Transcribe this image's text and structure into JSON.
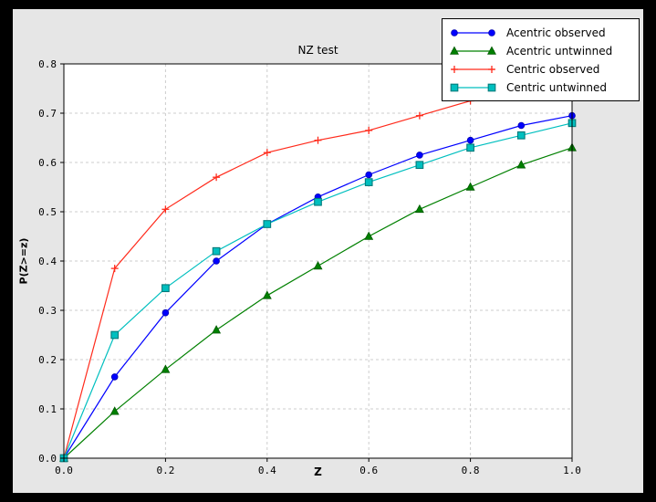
{
  "window": {
    "outer_background": "#000000",
    "figure_background": "#e6e6e6",
    "plot_background": "#ffffff",
    "grid_color": "#cccccc",
    "axis_color": "#000000",
    "text_color": "#000000"
  },
  "chart_data": {
    "type": "line",
    "title": "NZ test",
    "xlabel": "Z",
    "ylabel": "P(Z>=z)",
    "xlim": [
      0.0,
      1.0
    ],
    "ylim": [
      0.0,
      0.8
    ],
    "x_ticks": [
      0.0,
      0.2,
      0.4,
      0.6,
      0.8,
      1.0
    ],
    "x_tick_labels": [
      "0.0",
      "0.2",
      "0.4",
      "0.6",
      "0.8",
      "1.0"
    ],
    "y_ticks": [
      0.0,
      0.1,
      0.2,
      0.3,
      0.4,
      0.5,
      0.6,
      0.7,
      0.8
    ],
    "y_tick_labels": [
      "0.0",
      "0.1",
      "0.2",
      "0.3",
      "0.4",
      "0.5",
      "0.6",
      "0.7",
      "0.8"
    ],
    "grid": true,
    "legend_position": "upper-right-overlapping-plot",
    "x": [
      0.0,
      0.1,
      0.2,
      0.3,
      0.4,
      0.5,
      0.6,
      0.7,
      0.8,
      0.9,
      1.0
    ],
    "series": [
      {
        "name": "Acentric observed",
        "color": "#0000ff",
        "marker": "circle",
        "marker_edge": "#0000b0",
        "values": [
          0.0,
          0.165,
          0.295,
          0.4,
          0.475,
          0.53,
          0.575,
          0.615,
          0.645,
          0.675,
          0.695
        ]
      },
      {
        "name": "Acentric untwinned",
        "color": "#008000",
        "marker": "triangle",
        "marker_edge": "#005a00",
        "values": [
          0.0,
          0.095,
          0.18,
          0.26,
          0.33,
          0.39,
          0.45,
          0.505,
          0.55,
          0.595,
          0.63
        ]
      },
      {
        "name": "Centric observed",
        "color": "#ff2a1b",
        "marker": "plus",
        "marker_edge": "#ff2a1b",
        "values": [
          0.0,
          0.385,
          0.505,
          0.57,
          0.62,
          0.645,
          0.665,
          0.695,
          0.725,
          0.745,
          0.755
        ]
      },
      {
        "name": "Centric untwinned",
        "color": "#00bfbf",
        "marker": "square",
        "marker_edge": "#007a7a",
        "values": [
          0.0,
          0.25,
          0.345,
          0.42,
          0.475,
          0.52,
          0.56,
          0.595,
          0.63,
          0.655,
          0.68
        ]
      }
    ]
  }
}
